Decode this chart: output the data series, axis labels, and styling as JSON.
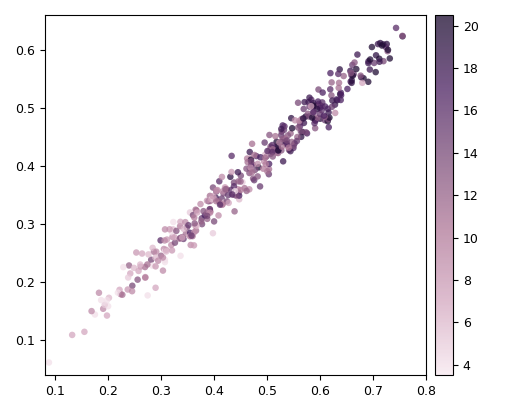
{
  "title": "",
  "xlabel": "",
  "ylabel": "",
  "xlim": [
    0.08,
    0.8
  ],
  "ylim": [
    0.04,
    0.66
  ],
  "xticks": [
    0.1,
    0.2,
    0.3,
    0.4,
    0.5,
    0.6,
    0.7,
    0.8
  ],
  "yticks": [
    0.1,
    0.2,
    0.3,
    0.4,
    0.5,
    0.6
  ],
  "colorbar_ticks": [
    4,
    6,
    8,
    10,
    12,
    14,
    16,
    18,
    20
  ],
  "colormap": "RdPu",
  "vmin": 3.5,
  "vmax": 20.5,
  "marker_size": 22,
  "alpha": 0.75,
  "seed": 42,
  "n_points": 380,
  "background_color": "#ffffff",
  "slope": 0.82,
  "intercept": 0.005,
  "noise_std": 0.018,
  "diam_min": 0.09,
  "diam_max": 0.78,
  "age_noise": 3.5
}
